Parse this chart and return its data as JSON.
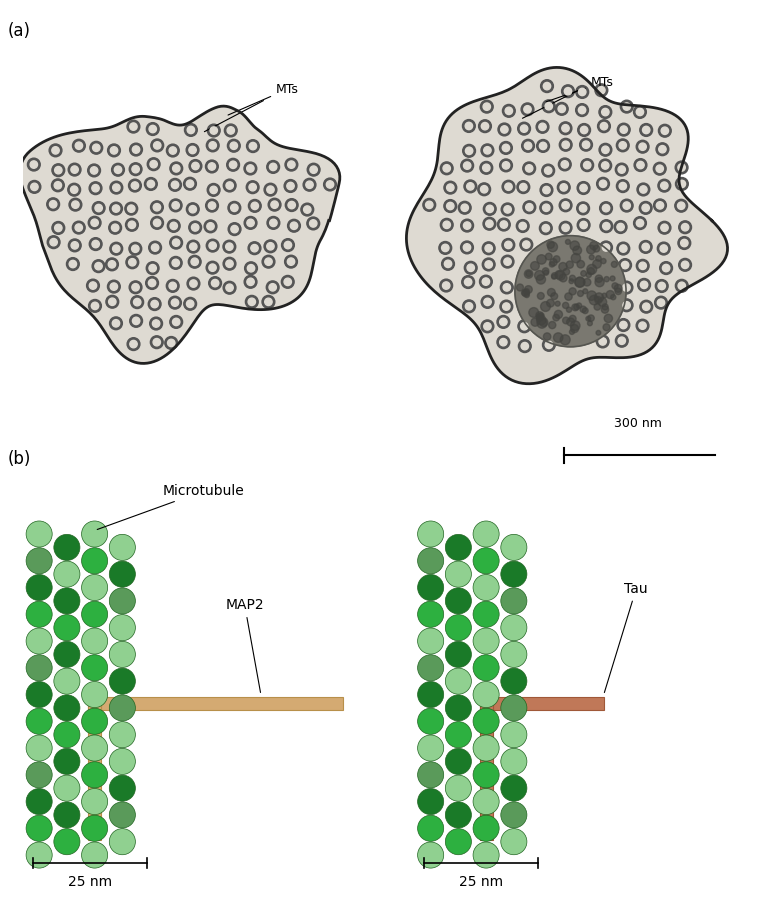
{
  "panel_a_label": "(a)",
  "panel_b_label": "(b)",
  "scale_bar_top": "300 nm",
  "scale_bar_bottom": "25 nm",
  "label_MTs": "MTs",
  "label_Microtubule": "Microtubule",
  "label_MAP2": "MAP2",
  "label_Tau": "Tau",
  "bg_color": "#ffffff",
  "mt_colors": {
    "dark_green": "#1a7a28",
    "mid_green": "#2db040",
    "light_green": "#90d090",
    "muted_green": "#5a9a5a",
    "dark_muted": "#4a8050"
  },
  "map2_color": "#d4aa72",
  "map2_edge": "#b8904a",
  "tau_color": "#c07858",
  "tau_edge": "#a05838",
  "figsize": [
    7.83,
    9.0
  ],
  "dpi": 100
}
